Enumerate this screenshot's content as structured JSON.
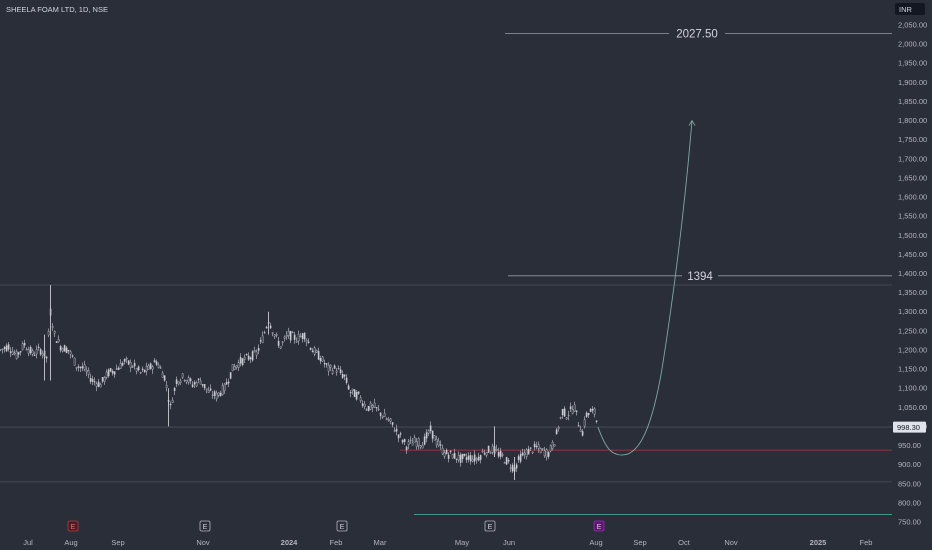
{
  "header": {
    "title": "SHEELA FOAM LTD, 1D, NSE"
  },
  "currency_button": {
    "label": "INR"
  },
  "colors": {
    "background": "#2a2e39",
    "candle": "#c8cad0",
    "axis_text": "#b2b5be",
    "level_line": "#9598a1",
    "red_line": "#b2393f",
    "teal_line": "#4db6ac",
    "projection": "#7fa89f",
    "price_tag_bg": "#e0e3eb"
  },
  "chart_data": {
    "type": "candlestick",
    "title": "SHEELA FOAM LTD, 1D, NSE",
    "currency": "INR",
    "y_ticks": [
      "2,050.00",
      "2,000.00",
      "1,950.00",
      "1,900.00",
      "1,850.00",
      "1,800.00",
      "1,750.00",
      "1,700.00",
      "1,650.00",
      "1,600.00",
      "1,550.00",
      "1,500.00",
      "1,450.00",
      "1,400.00",
      "1,350.00",
      "1,300.00",
      "1,250.00",
      "1,200.00",
      "1,150.00",
      "1,100.00",
      "1,050.00",
      "1,000.00",
      "950.00",
      "900.00",
      "850.00",
      "800.00",
      "750.00"
    ],
    "x_ticks": [
      "Jul",
      "Aug",
      "Sep",
      "Nov",
      "2024",
      "Feb",
      "Mar",
      "May",
      "Jun",
      "Aug",
      "Sep",
      "Oct",
      "Nov",
      "2025",
      "Feb"
    ],
    "ylim": [
      740,
      2070
    ],
    "last_price": "998.30",
    "price_path_close": [
      [
        0,
        1200
      ],
      [
        8,
        1210
      ],
      [
        16,
        1185
      ],
      [
        24,
        1215
      ],
      [
        32,
        1190
      ],
      [
        40,
        1200
      ],
      [
        46,
        1180
      ],
      [
        50,
        1300
      ],
      [
        54,
        1240
      ],
      [
        60,
        1210
      ],
      [
        68,
        1200
      ],
      [
        76,
        1160
      ],
      [
        84,
        1150
      ],
      [
        92,
        1120
      ],
      [
        100,
        1110
      ],
      [
        108,
        1140
      ],
      [
        116,
        1150
      ],
      [
        124,
        1170
      ],
      [
        132,
        1160
      ],
      [
        140,
        1140
      ],
      [
        148,
        1150
      ],
      [
        156,
        1170
      ],
      [
        164,
        1130
      ],
      [
        170,
        1050
      ],
      [
        176,
        1120
      ],
      [
        184,
        1130
      ],
      [
        192,
        1110
      ],
      [
        200,
        1120
      ],
      [
        208,
        1090
      ],
      [
        216,
        1080
      ],
      [
        224,
        1100
      ],
      [
        232,
        1150
      ],
      [
        240,
        1170
      ],
      [
        248,
        1180
      ],
      [
        256,
        1190
      ],
      [
        262,
        1230
      ],
      [
        268,
        1280
      ],
      [
        274,
        1240
      ],
      [
        280,
        1210
      ],
      [
        288,
        1240
      ],
      [
        296,
        1230
      ],
      [
        304,
        1240
      ],
      [
        312,
        1200
      ],
      [
        320,
        1180
      ],
      [
        328,
        1150
      ],
      [
        336,
        1150
      ],
      [
        344,
        1130
      ],
      [
        350,
        1090
      ],
      [
        358,
        1080
      ],
      [
        366,
        1050
      ],
      [
        374,
        1050
      ],
      [
        382,
        1030
      ],
      [
        390,
        1010
      ],
      [
        398,
        980
      ],
      [
        406,
        950
      ],
      [
        414,
        960
      ],
      [
        422,
        955
      ],
      [
        430,
        990
      ],
      [
        436,
        960
      ],
      [
        444,
        930
      ],
      [
        452,
        925
      ],
      [
        460,
        915
      ],
      [
        468,
        920
      ],
      [
        476,
        915
      ],
      [
        484,
        935
      ],
      [
        492,
        940
      ],
      [
        500,
        925
      ],
      [
        508,
        905
      ],
      [
        514,
        890
      ],
      [
        520,
        920
      ],
      [
        528,
        935
      ],
      [
        536,
        945
      ],
      [
        542,
        935
      ],
      [
        548,
        930
      ],
      [
        554,
        960
      ],
      [
        558,
        1000
      ],
      [
        562,
        1040
      ],
      [
        566,
        1030
      ],
      [
        570,
        1040
      ],
      [
        574,
        1050
      ],
      [
        578,
        1010
      ],
      [
        582,
        985
      ],
      [
        586,
        1030
      ],
      [
        590,
        1040
      ],
      [
        594,
        1035
      ],
      [
        598,
        998
      ]
    ],
    "wicks": [
      {
        "x": 50,
        "low": 1120,
        "high": 1370
      },
      {
        "x": 168,
        "low": 1000,
        "high": 1100
      },
      {
        "x": 514,
        "low": 860,
        "high": 920
      },
      {
        "x": 494,
        "low": 920,
        "high": 1000
      },
      {
        "x": 268,
        "low": 1240,
        "high": 1300
      },
      {
        "x": 44,
        "low": 1120,
        "high": 1240
      }
    ],
    "levels": [
      {
        "name": "target",
        "value": 2027.5,
        "label": "2027.50",
        "from_x": 505,
        "to_x": 892,
        "kind": "white"
      },
      {
        "name": "resistance",
        "value": 1394,
        "label": "1394",
        "from_x": 508,
        "to_x": 892,
        "kind": "white"
      },
      {
        "name": "prior-high",
        "value": 1370,
        "label": "",
        "from_x": 0,
        "to_x": 892,
        "kind": "faint"
      },
      {
        "name": "current",
        "value": 998.3,
        "label": "",
        "from_x": 0,
        "to_x": 892,
        "kind": "faint"
      },
      {
        "name": "support-red",
        "value": 938,
        "label": "",
        "from_x": 400,
        "to_x": 892,
        "kind": "red"
      },
      {
        "name": "low-faint",
        "value": 855,
        "label": "",
        "from_x": 0,
        "to_x": 892,
        "kind": "faint"
      },
      {
        "name": "teal-base",
        "value": 770,
        "label": "",
        "from_x": 414,
        "to_x": 892,
        "kind": "teal"
      }
    ],
    "projection": {
      "points": [
        [
          598,
          998
        ],
        [
          620,
          930
        ],
        [
          650,
          960
        ],
        [
          670,
          1100
        ],
        [
          682,
          1400
        ],
        [
          692,
          1800
        ]
      ],
      "arrow_tip": [
        692,
        1800
      ]
    },
    "earnings_markers": [
      {
        "x": 73,
        "label": "E",
        "style": "red"
      },
      {
        "x": 205,
        "label": "E",
        "style": "white"
      },
      {
        "x": 342,
        "label": "E",
        "style": "white"
      },
      {
        "x": 490,
        "label": "E",
        "style": "white"
      },
      {
        "x": 599,
        "label": "E",
        "style": "purple"
      }
    ]
  }
}
